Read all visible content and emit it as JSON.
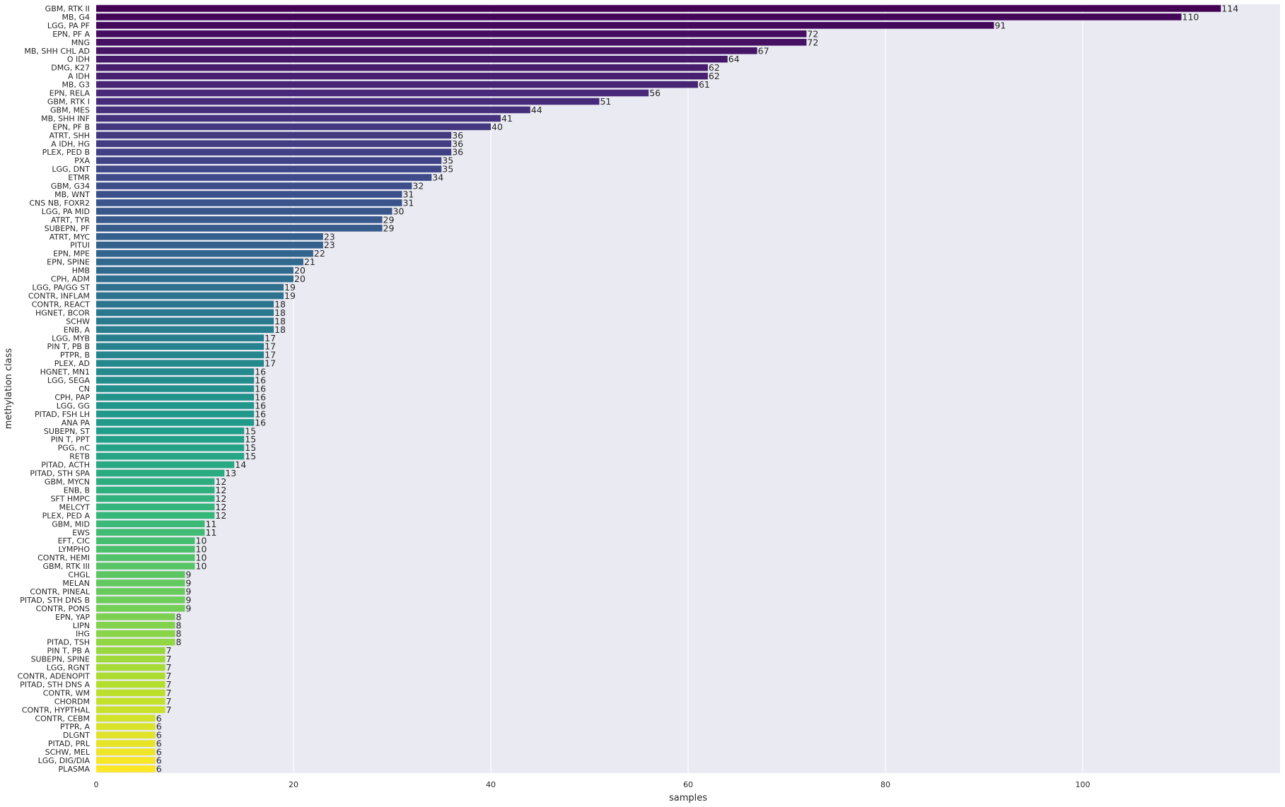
{
  "chart_data": {
    "type": "bar",
    "orientation": "horizontal",
    "title": "",
    "xlabel": "samples",
    "ylabel": "methylation class",
    "xlim": [
      0,
      120
    ],
    "xticks": [
      0,
      20,
      40,
      60,
      80,
      100
    ],
    "grid": true,
    "colormap": "viridis",
    "background": "#eaeaf2",
    "grid_color": "#ffffff",
    "categories": [
      "GBM, RTK II",
      "MB, G4",
      "LGG, PA PF",
      "EPN, PF A",
      "MNG",
      "MB, SHH CHL AD",
      "O IDH",
      "DMG, K27",
      "A IDH",
      "MB, G3",
      "EPN, RELA",
      "GBM, RTK I",
      "GBM, MES",
      "MB, SHH INF",
      "EPN, PF B",
      "ATRT, SHH",
      "A IDH, HG",
      "PLEX, PED B",
      "PXA",
      "LGG, DNT",
      "ETMR",
      "GBM, G34",
      "MB, WNT",
      "CNS NB, FOXR2",
      "LGG, PA MID",
      "ATRT, TYR",
      "SUBEPN, PF",
      "ATRT, MYC",
      "PITUI",
      "EPN, MPE",
      "EPN, SPINE",
      "HMB",
      "CPH, ADM",
      "LGG, PA/GG ST",
      "CONTR, INFLAM",
      "CONTR, REACT",
      "HGNET, BCOR",
      "SCHW",
      "ENB, A",
      "LGG, MYB",
      "PIN T,  PB B",
      "PTPR, B",
      "PLEX, AD",
      "HGNET, MN1",
      "LGG, SEGA",
      "CN",
      "CPH, PAP",
      "LGG, GG",
      "PITAD, FSH LH",
      "ANA PA",
      "SUBEPN, ST",
      "PIN T, PPT",
      "PGG, nC",
      "RETB",
      "PITAD, ACTH",
      "PITAD, STH SPA",
      "GBM, MYCN",
      "ENB, B",
      "SFT HMPC",
      "MELCYT",
      "PLEX, PED A",
      "GBM, MID",
      "EWS",
      "EFT, CIC",
      "LYMPHO",
      "CONTR, HEMI",
      "GBM, RTK III",
      "CHGL",
      "MELAN",
      "CONTR, PINEAL",
      "PITAD, STH DNS B",
      "CONTR, PONS",
      "EPN, YAP",
      "LIPN",
      "IHG",
      "PITAD, TSH",
      "PIN T,  PB A",
      "SUBEPN, SPINE",
      "LGG, RGNT",
      "CONTR, ADENOPIT",
      "PITAD, STH DNS A",
      "CONTR, WM",
      "CHORDM",
      "CONTR, HYPTHAL",
      "CONTR, CEBM",
      "PTPR, A",
      "DLGNT",
      "PITAD, PRL",
      "SCHW, MEL",
      "LGG, DIG/DIA",
      "PLASMA"
    ],
    "values": [
      114,
      110,
      91,
      72,
      72,
      67,
      64,
      62,
      62,
      61,
      56,
      51,
      44,
      41,
      40,
      36,
      36,
      36,
      35,
      35,
      34,
      32,
      31,
      31,
      30,
      29,
      29,
      23,
      23,
      22,
      21,
      20,
      20,
      19,
      19,
      18,
      18,
      18,
      18,
      17,
      17,
      17,
      17,
      16,
      16,
      16,
      16,
      16,
      16,
      16,
      15,
      15,
      15,
      15,
      14,
      13,
      12,
      12,
      12,
      12,
      12,
      11,
      11,
      10,
      10,
      10,
      10,
      9,
      9,
      9,
      9,
      9,
      8,
      8,
      8,
      8,
      7,
      7,
      7,
      7,
      7,
      7,
      7,
      7,
      6,
      6,
      6,
      6,
      6,
      6,
      6
    ]
  }
}
